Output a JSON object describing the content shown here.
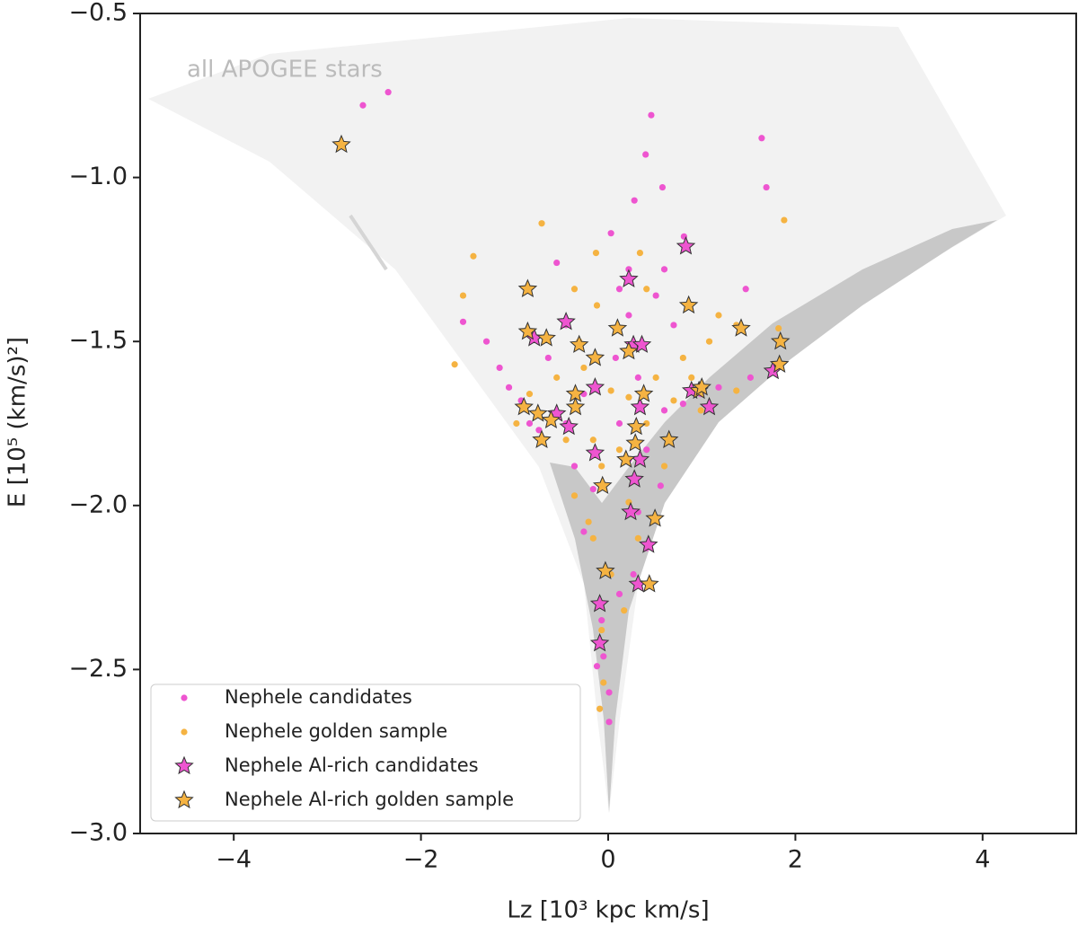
{
  "chart_data": {
    "type": "scatter",
    "xlabel": "Lz [10³ kpc km/s]",
    "ylabel": "E [10⁵ (km/s)²]",
    "annotation": "all APOGEE stars",
    "xlim": [
      -5,
      5
    ],
    "ylim": [
      -3.0,
      -0.5
    ],
    "xticks": [
      {
        "value": -4,
        "label": "−4"
      },
      {
        "value": -2,
        "label": "−2"
      },
      0,
      2,
      4
    ],
    "yticks": [
      {
        "value": -3.0,
        "label": "−3.0"
      },
      {
        "value": -2.5,
        "label": "−2.5"
      },
      {
        "value": -2.0,
        "label": "−2.0"
      },
      {
        "value": -1.5,
        "label": "−1.5"
      },
      {
        "value": -1.0,
        "label": "−1.0"
      },
      {
        "value": -0.5,
        "label": "−0.5"
      }
    ],
    "legend": "lower left",
    "series": [
      {
        "name": "Nephele candidates",
        "color": "#ee55d0",
        "marker": "circle",
        "x": [
          -2.35,
          -2.62,
          0.46,
          0.4,
          1.64,
          1.69,
          0.58,
          0.28,
          0.81,
          0.03,
          -0.55,
          -1.55,
          -1.3,
          -1.16,
          -1.06,
          -0.93,
          -0.84,
          -0.74,
          -0.45,
          -0.26,
          -0.36,
          -0.16,
          0.22,
          0.12,
          0.51,
          0.7,
          0.99,
          0.8,
          0.6,
          1.18,
          1.47,
          1.52,
          0.41,
          0.56,
          0.32,
          0.41,
          0.27,
          0.12,
          -0.07,
          -0.05,
          -0.12,
          0.01,
          0.01,
          -0.26,
          0.22,
          -0.45,
          -0.64,
          0.08,
          0.32,
          0.12,
          0.6,
          0.22
        ],
        "values": [
          -0.74,
          -0.78,
          -0.81,
          -0.93,
          -0.88,
          -1.03,
          -1.03,
          -1.07,
          -1.18,
          -1.17,
          -1.26,
          -1.44,
          -1.5,
          -1.58,
          -1.64,
          -1.68,
          -1.75,
          -1.77,
          -1.75,
          -1.66,
          -1.88,
          -1.95,
          -1.28,
          -1.34,
          -1.36,
          -1.45,
          -1.66,
          -1.69,
          -1.71,
          -1.64,
          -1.34,
          -1.61,
          -1.83,
          -1.94,
          -2.02,
          -2.13,
          -2.21,
          -2.27,
          -2.35,
          -2.46,
          -2.49,
          -2.57,
          -2.66,
          -2.08,
          -1.86,
          -1.45,
          -1.55,
          -1.55,
          -1.61,
          -1.75,
          -1.28,
          -1.42
        ]
      },
      {
        "name": "Nephele golden sample",
        "color": "#f5b342",
        "marker": "circle",
        "x": [
          -0.71,
          -0.13,
          0.34,
          -1.44,
          -1.55,
          -1.64,
          1.88,
          -0.36,
          -0.12,
          0.41,
          1.18,
          1.37,
          1.82,
          1.08,
          0.8,
          -0.55,
          -0.26,
          0.03,
          0.22,
          -0.84,
          -0.98,
          -0.74,
          -0.45,
          -0.16,
          0.12,
          0.41,
          0.7,
          0.99,
          1.37,
          -0.36,
          -0.07,
          0.22,
          0.6,
          -0.21,
          -0.16,
          0.32,
          0.03,
          -0.07,
          -0.09,
          -0.05,
          0.17,
          0.51,
          0.89,
          -0.31
        ],
        "values": [
          -1.14,
          -1.23,
          -1.23,
          -1.24,
          -1.36,
          -1.57,
          -1.13,
          -1.34,
          -1.39,
          -1.34,
          -1.42,
          -1.45,
          -1.46,
          -1.5,
          -1.55,
          -1.61,
          -1.58,
          -1.65,
          -1.67,
          -1.66,
          -1.75,
          -1.72,
          -1.8,
          -1.8,
          -1.83,
          -1.75,
          -1.68,
          -1.71,
          -1.65,
          -1.97,
          -1.88,
          -1.99,
          -1.88,
          -2.05,
          -2.1,
          -2.1,
          -2.21,
          -2.38,
          -2.62,
          -2.54,
          -2.32,
          -1.61,
          -1.61,
          -1.5
        ]
      },
      {
        "name": "Nephele Al-rich candidates",
        "color": "#ee55d0",
        "marker": "star",
        "x": [
          0.83,
          0.22,
          -0.45,
          -0.79,
          0.27,
          0.36,
          -0.14,
          0.34,
          -0.42,
          -0.14,
          0.34,
          0.28,
          0.24,
          0.43,
          0.32,
          -0.09,
          -0.09,
          0.89,
          1.08,
          1.76,
          -0.55
        ],
        "values": [
          -1.21,
          -1.31,
          -1.44,
          -1.49,
          -1.51,
          -1.51,
          -1.64,
          -1.7,
          -1.76,
          -1.84,
          -1.86,
          -1.92,
          -2.02,
          -2.12,
          -2.24,
          -2.3,
          -2.42,
          -1.65,
          -1.7,
          -1.59,
          -1.72
        ]
      },
      {
        "name": "Nephele Al-rich golden sample",
        "color": "#f5b342",
        "marker": "star",
        "x": [
          -2.85,
          -0.86,
          0.86,
          -0.86,
          -0.66,
          -0.31,
          0.1,
          0.22,
          -0.14,
          1.42,
          1.84,
          1.83,
          -0.9,
          -0.35,
          -0.35,
          -0.61,
          -0.75,
          -0.71,
          0.38,
          0.3,
          0.29,
          0.65,
          0.97,
          1.0,
          0.19,
          -0.06,
          0.5,
          0.44,
          -0.03
        ],
        "values": [
          -0.9,
          -1.34,
          -1.39,
          -1.47,
          -1.49,
          -1.51,
          -1.46,
          -1.53,
          -1.55,
          -1.46,
          -1.5,
          -1.57,
          -1.7,
          -1.66,
          -1.7,
          -1.74,
          -1.72,
          -1.8,
          -1.66,
          -1.76,
          -1.81,
          -1.8,
          -1.65,
          -1.64,
          -1.86,
          -1.94,
          -2.04,
          -2.24,
          -2.2
        ]
      }
    ]
  }
}
